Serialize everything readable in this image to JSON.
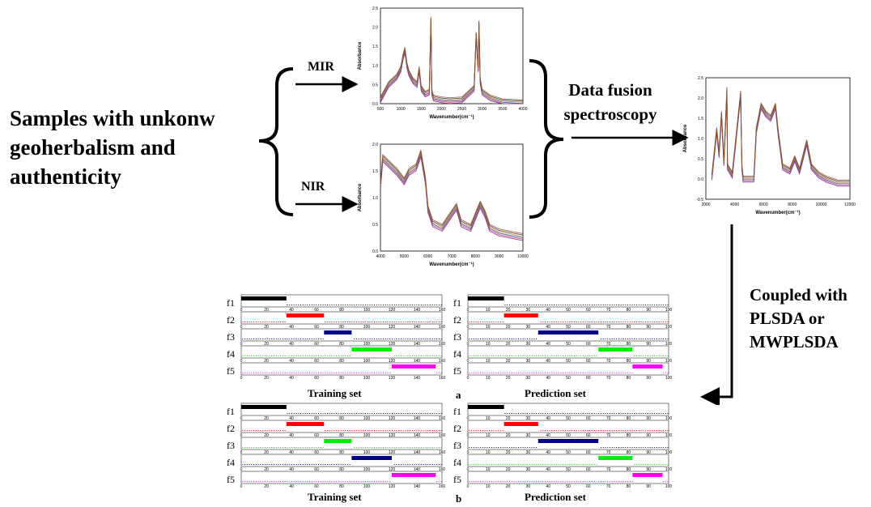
{
  "samples_text": [
    "Samples with unkonw",
    "geoherbalism and",
    "authenticity"
  ],
  "mir_label": "MIR",
  "nir_label": "NIR",
  "fusion_text": [
    "Data fusion",
    "spectroscopy"
  ],
  "coupled_text": [
    "Coupled with",
    "PLSDA or",
    "MWPLSDA"
  ],
  "chart_data": [
    {
      "id": "mir-spectrum",
      "type": "line",
      "xlabel": "Wavenumber(cm⁻¹)",
      "ylabel": "Absorbance",
      "xticks": [
        "500",
        "1000",
        "1500",
        "2000",
        "2500",
        "3000",
        "3500",
        "4000"
      ],
      "yticks": [
        "0.0",
        "0.5",
        "1.0",
        "1.5",
        "2.0",
        "2.5"
      ],
      "xlim": [
        500,
        4000
      ],
      "ylim": [
        0,
        2.5
      ],
      "x": [
        500,
        700,
        900,
        1000,
        1050,
        1100,
        1150,
        1200,
        1300,
        1400,
        1450,
        1500,
        1600,
        1700,
        1740,
        1760,
        1800,
        2000,
        2200,
        2500,
        2800,
        2850,
        2900,
        2920,
        2950,
        3000,
        3200,
        3500,
        4000
      ],
      "y": [
        0.1,
        0.5,
        0.7,
        0.9,
        1.2,
        1.4,
        1.0,
        0.8,
        0.6,
        0.5,
        0.9,
        0.4,
        0.25,
        0.3,
        2.2,
        0.3,
        0.15,
        0.1,
        0.08,
        0.1,
        0.4,
        1.8,
        0.9,
        2.1,
        0.6,
        0.3,
        0.15,
        0.05,
        0.02
      ]
    },
    {
      "id": "nir-spectrum",
      "type": "line",
      "xlabel": "Wavenumber(cm⁻¹)",
      "ylabel": "Absorbance",
      "xticks": [
        "4000",
        "5000",
        "6000",
        "7000",
        "8000",
        "9000",
        "10000"
      ],
      "yticks": [
        "0.0",
        "0.5",
        "1.0",
        "1.5",
        "2.0"
      ],
      "xlim": [
        4000,
        10000
      ],
      "ylim": [
        -0.2,
        2.1
      ],
      "x": [
        4000,
        4100,
        4300,
        4500,
        4700,
        5000,
        5200,
        5500,
        5700,
        5900,
        6000,
        6200,
        6600,
        7000,
        7200,
        7400,
        7800,
        8200,
        8400,
        8600,
        9000,
        9500,
        10000
      ],
      "y": [
        1.2,
        1.8,
        1.7,
        1.6,
        1.5,
        1.3,
        1.5,
        1.6,
        1.9,
        1.3,
        0.7,
        0.4,
        0.3,
        0.6,
        0.75,
        0.4,
        0.3,
        0.8,
        0.6,
        0.3,
        0.2,
        0.15,
        0.1
      ]
    },
    {
      "id": "fused-spectrum",
      "type": "line",
      "xlabel": "Wavenumber(cm⁻¹)",
      "ylabel": "Absorbance",
      "xticks": [
        "2000",
        "4000",
        "6000",
        "8000",
        "10000",
        "12000"
      ],
      "yticks": [
        "-0.5",
        "0.0",
        "0.5",
        "1.0",
        "1.5",
        "2.0",
        "2.5"
      ],
      "xlim": [
        0,
        12000
      ],
      "ylim": [
        -0.5,
        2.5
      ],
      "x": [
        500,
        900,
        1100,
        1300,
        1500,
        1750,
        1800,
        2200,
        2900,
        3000,
        3100,
        3600,
        4000,
        4200,
        4600,
        5000,
        5400,
        5800,
        6000,
        6400,
        7000,
        7400,
        7800,
        8400,
        8800,
        9400,
        10000,
        11000,
        12000
      ],
      "y": [
        0.05,
        1.2,
        0.6,
        1.6,
        0.4,
        2.2,
        0.3,
        0.1,
        2.1,
        0.3,
        0.0,
        0.0,
        0.0,
        1.2,
        1.8,
        1.6,
        1.5,
        1.8,
        1.2,
        0.3,
        0.2,
        0.5,
        0.2,
        0.9,
        0.3,
        0.1,
        0.0,
        -0.1,
        -0.1
      ]
    }
  ],
  "panels": [
    {
      "id": "training-a",
      "caption": "Training set",
      "xticks": [
        "0",
        "20",
        "40",
        "60",
        "80",
        "100",
        "120",
        "140",
        "160"
      ],
      "xmax": 160,
      "rows": [
        {
          "label": "f1",
          "color": "#000000",
          "start": 0,
          "end": 36
        },
        {
          "label": "f2",
          "color": "#ff0000",
          "start": 36,
          "end": 66
        },
        {
          "label": "f3",
          "color": "#00008b",
          "start": 66,
          "end": 88
        },
        {
          "label": "f4",
          "color": "#00ee00",
          "start": 88,
          "end": 120
        },
        {
          "label": "f5",
          "color": "#ff00ff",
          "start": 120,
          "end": 155
        }
      ]
    },
    {
      "id": "prediction-a",
      "caption": "Prediction set",
      "xticks": [
        "0",
        "10",
        "20",
        "30",
        "40",
        "50",
        "60",
        "70",
        "80",
        "90",
        "100"
      ],
      "xmax": 100,
      "rows": [
        {
          "label": "f1",
          "color": "#000000",
          "start": 0,
          "end": 18
        },
        {
          "label": "f2",
          "color": "#ff0000",
          "start": 18,
          "end": 35
        },
        {
          "label": "f3",
          "color": "#00008b",
          "start": 35,
          "end": 65
        },
        {
          "label": "f4",
          "color": "#00ee00",
          "start": 65,
          "end": 82
        },
        {
          "label": "f5",
          "color": "#ff00ff",
          "start": 82,
          "end": 97
        }
      ]
    },
    {
      "id": "training-b",
      "caption": "Training set",
      "xticks": [
        "0",
        "20",
        "40",
        "60",
        "80",
        "100",
        "120",
        "140",
        "160"
      ],
      "xmax": 160,
      "rows": [
        {
          "label": "f1",
          "color": "#000000",
          "start": 0,
          "end": 36
        },
        {
          "label": "f2",
          "color": "#ff0000",
          "start": 36,
          "end": 66
        },
        {
          "label": "f3",
          "color": "#00ee00",
          "start": 66,
          "end": 88
        },
        {
          "label": "f4",
          "color": "#00008b",
          "start": 88,
          "end": 120
        },
        {
          "label": "f5",
          "color": "#ff00ff",
          "start": 120,
          "end": 155
        }
      ]
    },
    {
      "id": "prediction-b",
      "caption": "Prediction set",
      "xticks": [
        "0",
        "10",
        "20",
        "30",
        "40",
        "50",
        "60",
        "70",
        "80",
        "90",
        "100"
      ],
      "xmax": 100,
      "rows": [
        {
          "label": "f1",
          "color": "#000000",
          "start": 0,
          "end": 18
        },
        {
          "label": "f2",
          "color": "#ff0000",
          "start": 18,
          "end": 35
        },
        {
          "label": "f3",
          "color": "#00008b",
          "start": 35,
          "end": 65
        },
        {
          "label": "f4",
          "color": "#00ee00",
          "start": 65,
          "end": 82
        },
        {
          "label": "f5",
          "color": "#ff00ff",
          "start": 82,
          "end": 97
        }
      ]
    }
  ],
  "label_a": "a",
  "label_b": "b"
}
